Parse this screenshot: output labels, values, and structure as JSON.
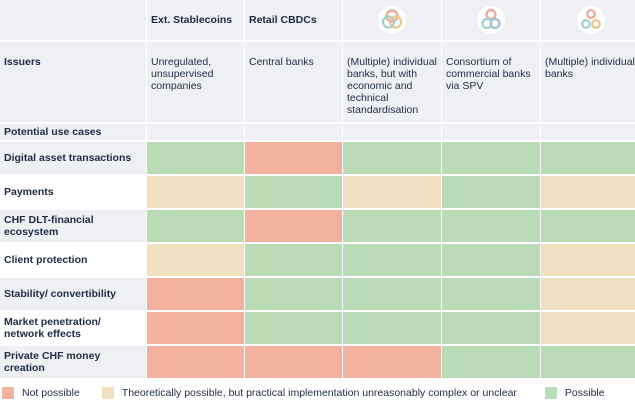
{
  "columns": [
    {
      "label": ""
    },
    {
      "label": "Ext. Stablecoins"
    },
    {
      "label": "Retail CBDCs"
    },
    {
      "label": "",
      "icon": "three-circles-venn-icon"
    },
    {
      "label": "",
      "icon": "overlapping-circles-icon"
    },
    {
      "label": "",
      "icon": "separate-circles-icon"
    }
  ],
  "issuers": {
    "label": "Issuers",
    "values": [
      "Unregulated, unsupervised companies",
      "Central banks",
      "(Multiple) individual banks, but with economic and technical standardisation",
      "Consortium of commercial banks via SPV",
      "(Multiple) individual banks"
    ]
  },
  "section_label": "Potential use cases",
  "rows": [
    {
      "label": "Digital asset transactions",
      "cells": [
        "green",
        "red",
        "green",
        "green",
        "green"
      ]
    },
    {
      "label": "Payments",
      "cells": [
        "beige",
        "green",
        "beige",
        "green",
        "beige"
      ]
    },
    {
      "label": "CHF DLT-financial ecosystem",
      "cells": [
        "green",
        "red",
        "green",
        "green",
        "green"
      ]
    },
    {
      "label": "Client protection",
      "cells": [
        "beige",
        "green",
        "green",
        "green",
        "beige"
      ]
    },
    {
      "label": "Stability/ convertibility",
      "cells": [
        "red",
        "green",
        "green",
        "green",
        "beige"
      ]
    },
    {
      "label": "Market penetration/ network effects",
      "cells": [
        "red",
        "green",
        "green",
        "green",
        "beige"
      ]
    },
    {
      "label": "Private CHF money creation",
      "cells": [
        "red",
        "red",
        "red",
        "green",
        "green"
      ]
    }
  ],
  "legend": [
    {
      "label": "Not possible",
      "color": "#f5b19f"
    },
    {
      "label": "Theoretically possible, but practical implementation unreasonably complex or unclear",
      "color": "#f1e1c0"
    },
    {
      "label": "Possible",
      "color": "#b9dbb5"
    }
  ],
  "colors": {
    "green": "#b9dbb5",
    "red": "#f5b19f",
    "beige": "#f1e1c0",
    "header_bg": "#eef0f3"
  }
}
